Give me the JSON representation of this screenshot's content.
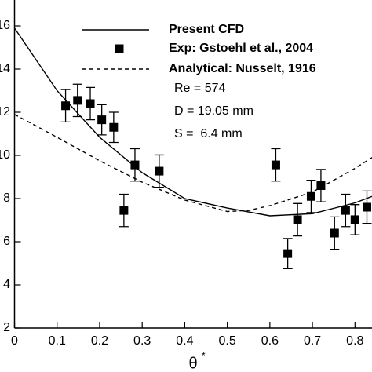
{
  "chart_data": {
    "type": "scatter",
    "xlabel": "θ",
    "xlabel_superscript": "*",
    "xlim": [
      0,
      0.84
    ],
    "ylim": [
      2,
      17.2
    ],
    "xticks": [
      0,
      0.1,
      0.2,
      0.3,
      0.4,
      0.5,
      0.6,
      0.7,
      0.8
    ],
    "yticks": [
      2,
      4,
      6,
      8,
      10,
      12,
      14,
      16
    ],
    "series": [
      {
        "name": "Present CFD",
        "kind": "line",
        "dash": "solid",
        "color": "#000000",
        "x": [
          0,
          0.1,
          0.2,
          0.3,
          0.4,
          0.5,
          0.6,
          0.7,
          0.8,
          0.84
        ],
        "values": [
          15.9,
          13.0,
          10.84,
          9.2,
          8.0,
          7.56,
          7.2,
          7.3,
          7.8,
          8.1
        ]
      },
      {
        "name": "Exp: Gstoehl et al., 2004",
        "kind": "points",
        "color": "#000000",
        "x": [
          0.12,
          0.148,
          0.178,
          0.205,
          0.233,
          0.283,
          0.34,
          0.257,
          0.614,
          0.642,
          0.665,
          0.697,
          0.72,
          0.752,
          0.778,
          0.8,
          0.828
        ],
        "values": [
          12.3,
          12.55,
          12.4,
          11.65,
          11.3,
          9.56,
          9.27,
          7.45,
          9.56,
          5.45,
          7.02,
          8.1,
          8.6,
          6.4,
          7.45,
          7.02,
          7.6
        ],
        "errors": [
          0.75,
          0.75,
          0.75,
          0.7,
          0.7,
          0.75,
          0.75,
          0.75,
          0.75,
          0.7,
          0.75,
          0.75,
          0.75,
          0.75,
          0.75,
          0.7,
          0.75
        ]
      },
      {
        "name": "Analytical: Nusselt, 1916",
        "kind": "line",
        "dash": "dashed",
        "color": "#000000",
        "x": [
          0,
          0.1,
          0.2,
          0.3,
          0.4,
          0.5,
          0.55,
          0.6,
          0.7,
          0.8,
          0.84
        ],
        "values": [
          11.9,
          10.84,
          9.75,
          8.76,
          7.93,
          7.4,
          7.45,
          7.67,
          8.3,
          9.4,
          9.9
        ]
      }
    ],
    "annotations": [
      "Re = 574",
      "D = 19.05 mm",
      "S =  6.4 mm"
    ]
  }
}
